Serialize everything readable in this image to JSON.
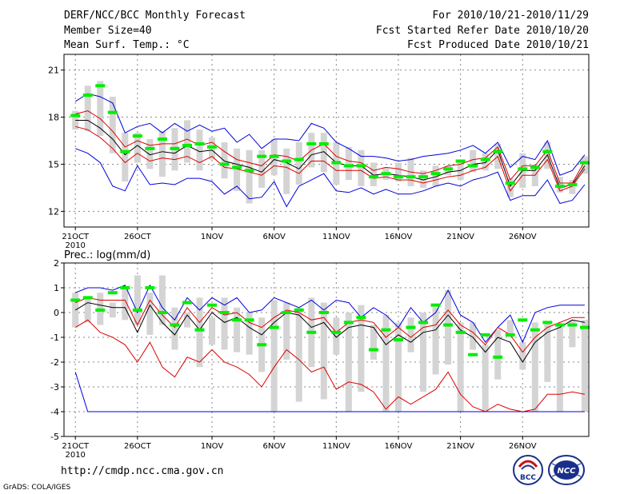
{
  "header": {
    "title": "DERF/NCC/BCC Monthly Forecast",
    "member_size": "Member Size=40",
    "variable": "Mean Surf. Temp.: °C",
    "period": "For 2010/10/21-2010/11/29",
    "start_date": "Fcst Started Refer Date 2010/10/20",
    "produced_date": "Fcst Produced Date 2010/10/21"
  },
  "footer": {
    "url": "http://cmdp.ncc.cma.gov.cn",
    "credit": "GrADS: COLA/IGES",
    "logo_left": "BCC",
    "logo_right": "NCC"
  },
  "colors": {
    "ensemble_box": "#d4d4d4",
    "median": "#00ee00",
    "mean": "#000000",
    "spread": "#dd0000",
    "extreme": "#0000dd",
    "grid": "#888888"
  },
  "chart_data": [
    {
      "type": "box",
      "title": "Mean Surf. Temp.: °C",
      "x_label_year": "2010",
      "tick_labels": [
        "21OCT",
        "26OCT",
        "1NOV",
        "6NOV",
        "11NOV",
        "16NOV",
        "21NOV",
        "26NOV"
      ],
      "tick_day_index": [
        0,
        5,
        11,
        16,
        21,
        26,
        31,
        36
      ],
      "ylim": [
        11,
        22
      ],
      "yticks": [
        12,
        15,
        18,
        21
      ],
      "series": {
        "max": [
          19.0,
          19.5,
          19.3,
          18.9,
          17.0,
          17.4,
          17.6,
          17.0,
          17.6,
          17.1,
          17.5,
          17.1,
          17.3,
          16.4,
          16.9,
          16.0,
          16.6,
          16.6,
          16.5,
          17.6,
          17.3,
          16.4,
          16.0,
          15.5,
          15.5,
          15.4,
          15.2,
          15.3,
          15.5,
          15.6,
          15.7,
          15.9,
          16.2,
          15.7,
          16.4,
          14.8,
          15.5,
          15.3,
          16.5,
          14.3,
          14.6,
          15.6
        ],
        "spread_hi": [
          18.2,
          18.4,
          17.9,
          17.1,
          16.1,
          16.5,
          16.2,
          16.3,
          16.3,
          16.6,
          16.2,
          16.4,
          15.8,
          15.3,
          15.1,
          14.9,
          15.6,
          15.5,
          15.2,
          15.9,
          16.3,
          15.5,
          15.2,
          15.1,
          14.6,
          14.8,
          14.7,
          14.5,
          14.4,
          14.6,
          14.9,
          15.0,
          15.3,
          15.4,
          16.1,
          14.0,
          14.9,
          14.9,
          15.9,
          13.8,
          13.8,
          15.2
        ],
        "mean": [
          17.8,
          17.8,
          17.3,
          16.6,
          15.6,
          16.2,
          15.6,
          15.8,
          15.7,
          16.2,
          15.8,
          15.9,
          15.2,
          15.0,
          14.8,
          14.5,
          15.3,
          15.1,
          14.7,
          15.6,
          15.8,
          15.1,
          14.9,
          14.9,
          14.3,
          14.4,
          14.3,
          14.2,
          14.0,
          14.2,
          14.5,
          14.6,
          15.0,
          15.1,
          15.9,
          13.6,
          14.6,
          14.6,
          15.6,
          13.5,
          13.7,
          14.9
        ],
        "spread_lo": [
          17.4,
          17.2,
          16.7,
          16.0,
          15.1,
          15.7,
          15.2,
          15.4,
          15.3,
          15.5,
          15.1,
          15.5,
          14.8,
          14.7,
          14.5,
          14.3,
          14.9,
          14.8,
          14.4,
          15.2,
          15.2,
          14.6,
          14.6,
          14.6,
          14.1,
          14.2,
          14.0,
          14.0,
          13.8,
          14.0,
          14.2,
          14.3,
          14.6,
          14.8,
          15.5,
          13.3,
          14.3,
          14.3,
          15.3,
          13.3,
          13.6,
          14.7
        ],
        "min": [
          16.0,
          15.7,
          15.1,
          13.6,
          13.3,
          14.9,
          13.7,
          13.8,
          13.7,
          14.1,
          14.1,
          13.9,
          13.1,
          13.6,
          12.8,
          12.9,
          13.9,
          12.3,
          13.6,
          14.0,
          14.4,
          13.3,
          13.2,
          13.5,
          13.1,
          13.4,
          13.1,
          13.1,
          13.3,
          13.6,
          13.8,
          13.6,
          14.0,
          14.2,
          14.5,
          12.7,
          13.0,
          13.0,
          14.0,
          12.5,
          12.7,
          13.7
        ],
        "box_hi": [
          18.4,
          20.0,
          20.3,
          19.3,
          17.0,
          17.0,
          16.6,
          17.1,
          17.3,
          17.8,
          17.2,
          16.7,
          16.4,
          16.0,
          15.9,
          15.9,
          16.6,
          16.0,
          16.4,
          17.0,
          17.0,
          16.4,
          16.1,
          15.9,
          15.1,
          14.8,
          15.1,
          15.4,
          14.6,
          14.9,
          14.9,
          15.2,
          15.9,
          15.7,
          16.3,
          14.1,
          15.7,
          15.0,
          16.4,
          14.2,
          14.0,
          15.5
        ],
        "box_lo": [
          17.2,
          17.1,
          16.8,
          15.7,
          13.9,
          15.1,
          14.7,
          14.2,
          14.6,
          15.1,
          14.6,
          15.3,
          14.1,
          13.3,
          12.5,
          13.5,
          14.3,
          13.1,
          13.7,
          14.8,
          14.5,
          13.7,
          14.0,
          13.6,
          13.6,
          14.0,
          13.9,
          13.6,
          13.5,
          13.6,
          14.3,
          14.0,
          14.5,
          14.6,
          14.7,
          12.9,
          13.5,
          13.6,
          14.7,
          13.2,
          13.1,
          14.4
        ],
        "median": [
          18.1,
          19.4,
          20.0,
          18.3,
          15.8,
          16.8,
          16.0,
          16.6,
          16.0,
          16.2,
          16.3,
          16.1,
          15.0,
          14.8,
          14.6,
          15.5,
          15.5,
          15.2,
          15.3,
          16.3,
          16.3,
          15.1,
          14.9,
          14.9,
          14.2,
          14.4,
          14.2,
          14.2,
          14.2,
          14.4,
          14.7,
          15.2,
          14.9,
          15.3,
          15.8,
          13.8,
          14.7,
          14.8,
          15.8,
          13.6,
          13.7,
          15.1
        ]
      }
    },
    {
      "type": "box",
      "title": "Prec.: log(mm/d)",
      "x_label_year": "2010",
      "tick_labels": [
        "21OCT",
        "26OCT",
        "1NOV",
        "6NOV",
        "11NOV",
        "16NOV",
        "21NOV",
        "26NOV"
      ],
      "tick_day_index": [
        0,
        5,
        11,
        16,
        21,
        26,
        31,
        36
      ],
      "ylim": [
        -5,
        2
      ],
      "yticks": [
        -5,
        -4,
        -3,
        -2,
        -1,
        0,
        1,
        2
      ],
      "series": {
        "max": [
          0.8,
          1.0,
          1.0,
          0.9,
          1.1,
          0.0,
          1.1,
          0.2,
          -0.3,
          0.6,
          0.1,
          0.6,
          0.3,
          0.6,
          0.0,
          0.1,
          0.6,
          0.4,
          0.2,
          0.5,
          0.1,
          0.5,
          0.4,
          -0.2,
          0.2,
          -0.1,
          -0.6,
          0.2,
          -0.4,
          0.0,
          0.9,
          -0.1,
          -0.4,
          -1.2,
          -0.6,
          -0.1,
          -1.2,
          0.0,
          0.2,
          0.3,
          0.3,
          0.3
        ],
        "spread_hi": [
          0.4,
          0.6,
          0.5,
          0.5,
          0.5,
          -0.5,
          0.5,
          -0.1,
          -0.6,
          0.2,
          -0.4,
          0.2,
          -0.1,
          0.0,
          -0.4,
          -0.6,
          -0.2,
          0.1,
          0.0,
          -0.3,
          -0.2,
          -0.8,
          -0.4,
          -0.3,
          -0.4,
          -1.0,
          -0.6,
          -1.0,
          -0.6,
          -0.5,
          0.1,
          -0.5,
          -0.8,
          -1.3,
          -0.6,
          -0.9,
          -1.6,
          -1.0,
          -0.6,
          -0.4,
          -0.2,
          -0.2
        ],
        "mean": [
          0.1,
          0.4,
          0.3,
          0.2,
          0.2,
          -0.8,
          0.3,
          -0.4,
          -0.9,
          -0.1,
          -0.7,
          0.0,
          -0.4,
          -0.2,
          -0.6,
          -0.9,
          -0.4,
          0.0,
          -0.1,
          -0.6,
          -0.4,
          -1.0,
          -0.6,
          -0.5,
          -0.6,
          -1.3,
          -0.9,
          -1.2,
          -0.8,
          -0.7,
          -0.1,
          -0.7,
          -1.0,
          -1.6,
          -1.0,
          -1.2,
          -2.0,
          -1.2,
          -0.8,
          -0.6,
          -0.3,
          -0.4
        ],
        "spread_lo": [
          -0.6,
          -0.3,
          -0.8,
          -1.0,
          -1.3,
          -2.0,
          -1.2,
          -2.2,
          -2.6,
          -1.8,
          -2.0,
          -1.5,
          -2.0,
          -2.2,
          -2.5,
          -3.0,
          -2.2,
          -1.5,
          -1.9,
          -2.4,
          -2.2,
          -3.1,
          -2.8,
          -2.9,
          -3.2,
          -3.9,
          -3.4,
          -3.7,
          -3.4,
          -3.1,
          -2.4,
          -3.3,
          -3.8,
          -4.0,
          -3.7,
          -3.9,
          -4.0,
          -3.9,
          -3.3,
          -3.3,
          -3.2,
          -3.3
        ],
        "min": [
          -2.4,
          -4.0,
          -4.0,
          -4.0,
          -4.0,
          -4.0,
          -4.0,
          -4.0,
          -4.0,
          -4.0,
          -4.0,
          -4.0,
          -4.0,
          -4.0,
          -4.0,
          -4.0,
          -4.0,
          -4.0,
          -4.0,
          -4.0,
          -4.0,
          -4.0,
          -4.0,
          -4.0,
          -4.0,
          -4.0,
          -4.0,
          -4.0,
          -4.0,
          -4.0,
          -4.0,
          -4.0,
          -4.0,
          -4.0,
          -4.0,
          -4.0,
          -4.0,
          -4.0,
          -4.0,
          -4.0,
          -4.0,
          -4.0
        ],
        "box_hi": [
          0.8,
          0.6,
          0.8,
          0.4,
          1.0,
          1.5,
          0.8,
          1.5,
          0.2,
          0.0,
          0.6,
          -0.2,
          0.6,
          0.2,
          0.0,
          -0.2,
          0.5,
          0.4,
          0.2,
          0.6,
          0.4,
          -0.2,
          0.0,
          0.3,
          -0.5,
          -0.1,
          -0.4,
          -0.2,
          0.0,
          0.2,
          0.9,
          -0.4,
          -0.4,
          -1.3,
          -0.7,
          -0.3,
          -1.2,
          -0.4,
          -0.4,
          -0.5,
          -0.3,
          -0.3
        ],
        "box_lo": [
          -0.6,
          -0.4,
          -0.5,
          -0.2,
          -0.3,
          -0.5,
          -0.9,
          -0.5,
          -1.5,
          -0.6,
          -2.2,
          -1.3,
          -1.5,
          -1.6,
          -1.7,
          -2.4,
          -4.0,
          -1.9,
          -3.6,
          -2.2,
          -3.5,
          -1.7,
          -4.0,
          -3.2,
          -1.9,
          -4.0,
          -4.0,
          -1.6,
          -3.2,
          -2.5,
          -2.1,
          -4.0,
          -1.5,
          -4.0,
          -2.7,
          -1.0,
          -2.3,
          -4.0,
          -2.8,
          -4.0,
          -1.4,
          -4.0
        ],
        "median": [
          0.5,
          0.6,
          0.1,
          0.8,
          1.0,
          0.1,
          1.0,
          0.0,
          -0.5,
          0.4,
          -0.7,
          0.3,
          0.0,
          -0.3,
          -0.3,
          -1.3,
          -0.6,
          0.0,
          0.1,
          -0.8,
          0.0,
          -0.8,
          -0.4,
          -0.2,
          -1.5,
          -0.7,
          -1.1,
          -0.6,
          -0.4,
          0.3,
          -0.5,
          -0.8,
          -1.7,
          -0.9,
          -1.8,
          -0.9,
          -0.3,
          -0.7,
          -0.4,
          -0.5,
          -0.5,
          -0.6
        ]
      }
    }
  ]
}
